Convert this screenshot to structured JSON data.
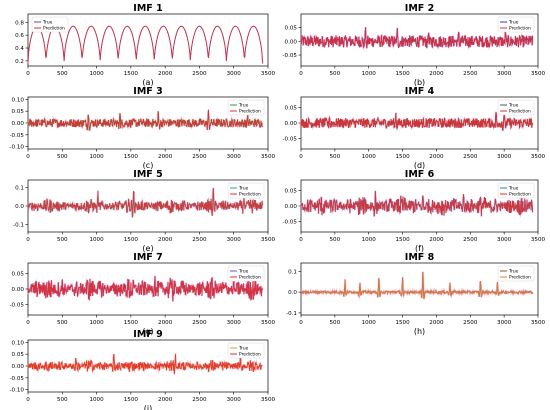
{
  "chart_data": [
    {
      "panel": "(a)",
      "type": "line",
      "title": "IMF 1",
      "xlim": [
        0,
        3500
      ],
      "ylim": [
        0.12,
        0.93
      ],
      "x_ticks": [
        0,
        500,
        1000,
        1500,
        2000,
        2500,
        3000,
        3500
      ],
      "y_ticks": [
        0.2,
        0.4,
        0.6,
        0.8
      ],
      "y_tick_labels": [
        "0.2",
        "0.4",
        "0.6",
        "0.8"
      ],
      "series": [
        {
          "name": "True",
          "color": "#6d3fa0"
        },
        {
          "name": "Prediction",
          "color": "#e03030"
        }
      ],
      "signal": {
        "kind": "cycles",
        "periods": 13,
        "low": 0.16,
        "high": 0.74,
        "end": 3420
      }
    },
    {
      "panel": "(b)",
      "type": "line",
      "title": "IMF 2",
      "xlim": [
        0,
        3500
      ],
      "ylim": [
        -0.09,
        0.1
      ],
      "x_ticks": [
        0,
        500,
        1000,
        1500,
        2000,
        2500,
        3000,
        3500
      ],
      "y_ticks": [
        -0.05,
        0.0,
        0.05
      ],
      "y_tick_labels": [
        "-0.05",
        "0.00",
        "0.05"
      ],
      "series": [
        {
          "name": "True",
          "color": "#3a3fb8"
        },
        {
          "name": "Prediction",
          "color": "#e03030"
        }
      ],
      "signal": {
        "kind": "noise",
        "amp": 0.022,
        "spikes": [
          [
            950,
            0.062
          ],
          [
            1420,
            0.05
          ],
          [
            1880,
            0.045
          ],
          [
            2330,
            0.048
          ],
          [
            3020,
            0.042
          ]
        ],
        "end": 3420
      }
    },
    {
      "panel": "(c)",
      "type": "line",
      "title": "IMF 3",
      "xlim": [
        0,
        3500
      ],
      "ylim": [
        -0.11,
        0.11
      ],
      "x_ticks": [
        0,
        500,
        1000,
        1500,
        2000,
        2500,
        3000,
        3500
      ],
      "y_ticks": [
        -0.1,
        -0.05,
        0.0,
        0.05,
        0.1
      ],
      "y_tick_labels": [
        "-0.10",
        "-0.05",
        "0.00",
        "0.05",
        "0.10"
      ],
      "series": [
        {
          "name": "True",
          "color": "#2f9a3a"
        },
        {
          "name": "Prediction",
          "color": "#e03030"
        }
      ],
      "signal": {
        "kind": "noise",
        "amp": 0.018,
        "spikes": [
          [
            880,
            0.05
          ],
          [
            1340,
            0.06
          ],
          [
            1900,
            0.045
          ],
          [
            2630,
            0.05
          ],
          [
            3200,
            0.04
          ]
        ],
        "end": 3420
      }
    },
    {
      "panel": "(d)",
      "type": "line",
      "title": "IMF 4",
      "xlim": [
        0,
        3500
      ],
      "ylim": [
        -0.085,
        0.085
      ],
      "x_ticks": [
        0,
        500,
        1000,
        1500,
        2000,
        2500,
        3000,
        3500
      ],
      "y_ticks": [
        -0.05,
        0.0,
        0.05
      ],
      "y_tick_labels": [
        "-0.05",
        "0.00",
        "0.05"
      ],
      "series": [
        {
          "name": "True",
          "color": "#555555"
        },
        {
          "name": "Prediction",
          "color": "#e03030"
        }
      ],
      "signal": {
        "kind": "noise",
        "amp": 0.016,
        "spikes": [
          [
            420,
            0.03
          ],
          [
            1400,
            0.032
          ],
          [
            2880,
            0.045
          ],
          [
            3000,
            0.05
          ]
        ],
        "end": 3420
      }
    },
    {
      "panel": "(e)",
      "type": "line",
      "title": "IMF 5",
      "xlim": [
        0,
        3500
      ],
      "ylim": [
        -0.14,
        0.14
      ],
      "x_ticks": [
        0,
        500,
        1000,
        1500,
        2000,
        2500,
        3000,
        3500
      ],
      "y_ticks": [
        -0.1,
        0.0,
        0.1
      ],
      "y_tick_labels": [
        "-0.1",
        "0.0",
        "0.1"
      ],
      "series": [
        {
          "name": "True",
          "color": "#2aa6a6"
        },
        {
          "name": "Prediction",
          "color": "#e03030"
        }
      ],
      "signal": {
        "kind": "bursty",
        "amp": 0.03,
        "spikes": [
          [
            1020,
            0.07
          ],
          [
            1540,
            0.09
          ],
          [
            2700,
            0.095
          ],
          [
            3150,
            0.06
          ]
        ],
        "end": 3420
      }
    },
    {
      "panel": "(f)",
      "type": "line",
      "title": "IMF 6",
      "xlim": [
        0,
        3500
      ],
      "ylim": [
        -0.085,
        0.085
      ],
      "x_ticks": [
        0,
        500,
        1000,
        1500,
        2000,
        2500,
        3000,
        3500
      ],
      "y_ticks": [
        -0.05,
        0.0,
        0.05
      ],
      "y_tick_labels": [
        "-0.05",
        "0.00",
        "0.05"
      ],
      "series": [
        {
          "name": "True",
          "color": "#2a7fc4"
        },
        {
          "name": "Prediction",
          "color": "#e03030"
        }
      ],
      "signal": {
        "kind": "bursty",
        "amp": 0.025,
        "spikes": [
          [
            1100,
            0.04
          ],
          [
            1800,
            0.045
          ],
          [
            2400,
            0.04
          ]
        ],
        "end": 3420
      }
    },
    {
      "panel": "(g)",
      "type": "line",
      "title": "IMF 7",
      "xlim": [
        0,
        3500
      ],
      "ylim": [
        -0.085,
        0.085
      ],
      "x_ticks": [
        0,
        500,
        1000,
        1500,
        2000,
        2500,
        3000,
        3500
      ],
      "y_ticks": [
        -0.05,
        0.0,
        0.05
      ],
      "y_tick_labels": [
        "-0.05",
        "0.00",
        "0.05"
      ],
      "series": [
        {
          "name": "True",
          "color": "#7a4fb0"
        },
        {
          "name": "Prediction",
          "color": "#e03030"
        }
      ],
      "signal": {
        "kind": "bursty",
        "amp": 0.028,
        "spikes": [
          [
            500,
            0.04
          ],
          [
            1850,
            0.05
          ],
          [
            2100,
            0.045
          ],
          [
            3000,
            0.05
          ]
        ],
        "end": 3420
      }
    },
    {
      "panel": "(h)",
      "type": "line",
      "title": "IMF 8",
      "xlim": [
        0,
        3500
      ],
      "ylim": [
        -0.11,
        0.14
      ],
      "x_ticks": [
        0,
        500,
        1000,
        1500,
        2000,
        2500,
        3000,
        3500
      ],
      "y_ticks": [
        -0.1,
        0.0,
        0.1
      ],
      "y_tick_labels": [
        "-0.1",
        "0.0",
        "0.1"
      ],
      "series": [
        {
          "name": "True",
          "color": "#8a5a2a"
        },
        {
          "name": "Prediction",
          "color": "#e0803a"
        }
      ],
      "signal": {
        "kind": "sparse",
        "amp": 0.012,
        "spikes": [
          [
            650,
            0.06
          ],
          [
            870,
            0.05
          ],
          [
            1150,
            0.09
          ],
          [
            1500,
            0.07
          ],
          [
            1800,
            0.11
          ],
          [
            2200,
            0.05
          ],
          [
            2650,
            0.07
          ],
          [
            2900,
            0.05
          ]
        ],
        "end": 3420
      }
    },
    {
      "panel": "(i)",
      "type": "line",
      "title": "IMF 9",
      "xlim": [
        0,
        3500
      ],
      "ylim": [
        -0.11,
        0.11
      ],
      "x_ticks": [
        0,
        500,
        1000,
        1500,
        2000,
        2500,
        3000,
        3500
      ],
      "y_ticks": [
        -0.1,
        -0.05,
        0.0,
        0.05,
        0.1
      ],
      "y_tick_labels": [
        "-0.10",
        "-0.05",
        "0.00",
        "0.05",
        "0.10"
      ],
      "series": [
        {
          "name": "True",
          "color": "#e0a020"
        },
        {
          "name": "Prediction",
          "color": "#e03030"
        }
      ],
      "signal": {
        "kind": "bursty",
        "amp": 0.02,
        "spikes": [
          [
            700,
            0.045
          ],
          [
            1250,
            0.05
          ],
          [
            2150,
            0.06
          ],
          [
            3100,
            0.04
          ]
        ],
        "end": 3420
      }
    }
  ]
}
